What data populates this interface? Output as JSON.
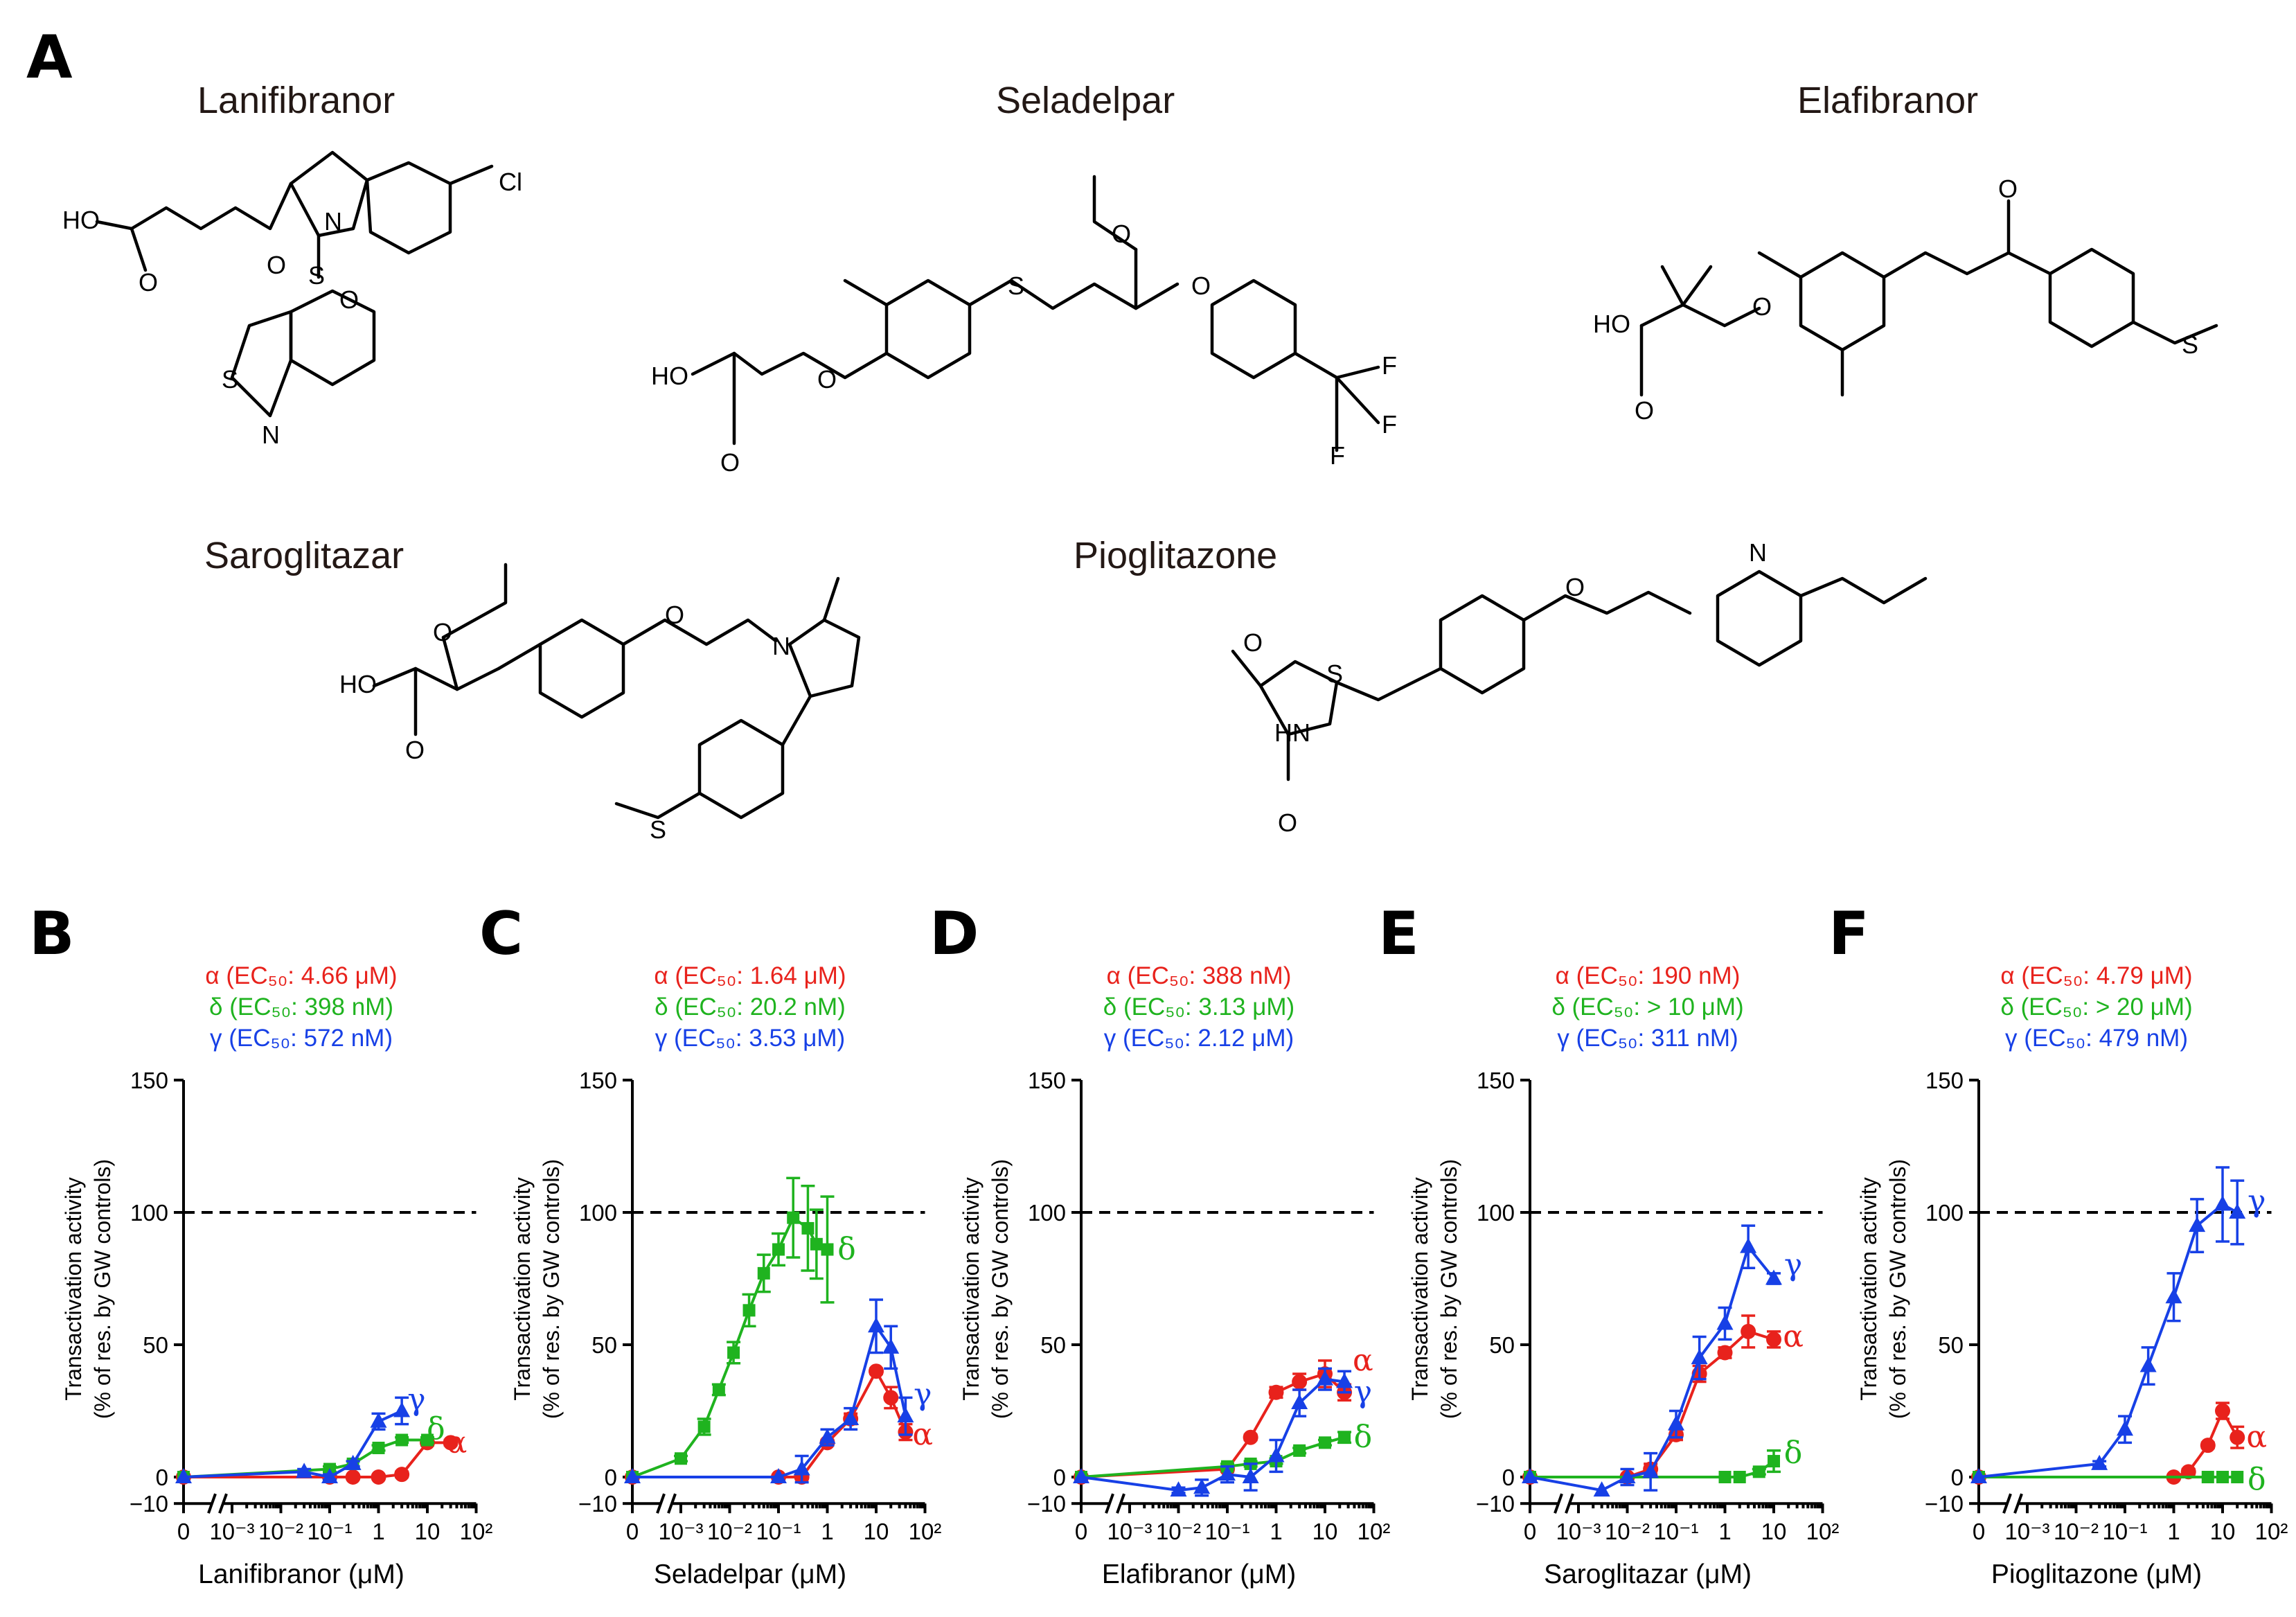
{
  "panels_label": {
    "A": "A",
    "B": "B",
    "C": "C",
    "D": "D",
    "E": "E",
    "F": "F"
  },
  "structures": {
    "lanifibranor": "Lanifibranor",
    "seladelpar": "Seladelpar",
    "elafibranor": "Elafibranor",
    "saroglitazar": "Saroglitazar",
    "pioglitazone": "Pioglitazone"
  },
  "atoms": {
    "ho": "HO",
    "o": "O",
    "n": "N",
    "s": "S",
    "cl": "Cl",
    "f": "F",
    "hn": "HN"
  },
  "colors": {
    "alpha": "#e8221c",
    "delta": "#1fb31f",
    "gamma": "#1740e6",
    "axis": "#000000"
  },
  "y_axis_title": [
    "Transactivation activity",
    "(% of res. by GW controls)"
  ],
  "y_ticks": [
    "150",
    "100",
    "50",
    "0",
    "−10"
  ],
  "x_ticks": [
    "0",
    "10⁻³",
    "10⁻²",
    "10⁻¹",
    "1",
    "10",
    "10²"
  ],
  "series_labels": {
    "alpha": "α",
    "delta": "δ",
    "gamma": "γ"
  },
  "chart_data": [
    {
      "panel": "B",
      "type": "line",
      "xscale": "log",
      "xlim": [
        0.0005,
        100
      ],
      "ylim": [
        -10,
        150
      ],
      "xlabel": "Lanifibranor (μM)",
      "ylabel": "Transactivation activity (% of res. by GW controls)",
      "reference_line": 100,
      "ec50": {
        "alpha": "α (EC₅₀: 4.66 μM)",
        "delta": "δ (EC₅₀: 398 nM)",
        "gamma": "γ (EC₅₀: 572 nM)"
      },
      "series": [
        {
          "name": "α",
          "key": "alpha",
          "x": [
            0,
            0.1,
            0.3,
            1,
            3,
            10,
            30
          ],
          "y": [
            0,
            0,
            0,
            0,
            1,
            13,
            13
          ],
          "err": [
            0,
            0,
            0,
            0,
            1,
            1,
            1
          ],
          "label_pos": [
            40,
            13
          ]
        },
        {
          "name": "δ",
          "key": "delta",
          "x": [
            0,
            0.1,
            0.3,
            1,
            3,
            10
          ],
          "y": [
            0,
            3,
            5,
            11,
            14,
            14
          ],
          "err": [
            0,
            1,
            1,
            1,
            1,
            1
          ],
          "label_pos": [
            15,
            18
          ]
        },
        {
          "name": "γ",
          "key": "gamma",
          "x": [
            0,
            0.03,
            0.1,
            0.3,
            1,
            3
          ],
          "y": [
            0,
            2,
            0,
            5,
            21,
            25
          ],
          "err": [
            0,
            1,
            1,
            1,
            3,
            5
          ],
          "label_pos": [
            6,
            29
          ]
        }
      ]
    },
    {
      "panel": "C",
      "type": "line",
      "xscale": "log",
      "xlim": [
        0.0005,
        100
      ],
      "ylim": [
        -10,
        150
      ],
      "xlabel": "Seladelpar (μM)",
      "ylabel": "Transactivation activity (% of res. by GW controls)",
      "reference_line": 100,
      "ec50": {
        "alpha": "α (EC₅₀: 1.64 μM)",
        "delta": "δ (EC₅₀: 20.2 nM)",
        "gamma": "γ (EC₅₀: 3.53 μM)"
      },
      "series": [
        {
          "name": "α",
          "key": "alpha",
          "x": [
            0,
            0.1,
            0.3,
            1,
            3,
            10,
            20,
            40
          ],
          "y": [
            0,
            0,
            0,
            13,
            22,
            40,
            30,
            17
          ],
          "err": [
            0,
            0,
            0,
            1,
            2,
            1,
            4,
            3
          ],
          "label_pos": [
            90,
            16
          ]
        },
        {
          "name": "δ",
          "key": "delta",
          "x": [
            0,
            0.001,
            0.003,
            0.006,
            0.012,
            0.025,
            0.05,
            0.1,
            0.2,
            0.4,
            0.6,
            1
          ],
          "y": [
            0,
            7,
            19,
            33,
            47,
            63,
            77,
            86,
            98,
            94,
            88,
            86
          ],
          "err": [
            0,
            1,
            3,
            2,
            4,
            6,
            7,
            6,
            15,
            16,
            13,
            20
          ],
          "label_pos": [
            2.5,
            86
          ]
        },
        {
          "name": "γ",
          "key": "gamma",
          "x": [
            0,
            0.1,
            0.3,
            1,
            3,
            10,
            20,
            40
          ],
          "y": [
            0,
            0,
            3,
            15,
            22,
            57,
            49,
            23
          ],
          "err": [
            0,
            0,
            5,
            3,
            4,
            10,
            8,
            7
          ],
          "label_pos": [
            90,
            31
          ]
        }
      ]
    },
    {
      "panel": "D",
      "type": "line",
      "xscale": "log",
      "xlim": [
        0.0005,
        100
      ],
      "ylim": [
        -10,
        150
      ],
      "xlabel": "Elafibranor (μM)",
      "ylabel": "Transactivation activity (% of res. by GW controls)",
      "reference_line": 100,
      "ec50": {
        "alpha": "α (EC₅₀: 388 nM)",
        "delta": "δ (EC₅₀: 3.13 μM)",
        "gamma": "γ (EC₅₀: 2.12 μM)"
      },
      "series": [
        {
          "name": "α",
          "key": "alpha",
          "x": [
            0,
            0.1,
            0.3,
            1,
            3,
            10,
            25
          ],
          "y": [
            0,
            3,
            15,
            32,
            36,
            39,
            32
          ],
          "err": [
            0,
            1,
            1,
            2,
            3,
            5,
            3
          ],
          "label_pos": [
            60,
            44
          ]
        },
        {
          "name": "δ",
          "key": "delta",
          "x": [
            0,
            0.1,
            0.3,
            1,
            3,
            10,
            25
          ],
          "y": [
            0,
            4,
            5,
            6,
            10,
            13,
            15
          ],
          "err": [
            0,
            1,
            1,
            1,
            1,
            1,
            2
          ],
          "label_pos": [
            60,
            15
          ]
        },
        {
          "name": "γ",
          "key": "gamma",
          "x": [
            0,
            0.01,
            0.03,
            0.1,
            0.3,
            1,
            3,
            10,
            25
          ],
          "y": [
            0,
            -5,
            -4,
            1,
            0,
            8,
            28,
            37,
            36
          ],
          "err": [
            0,
            1,
            3,
            3,
            5,
            6,
            5,
            4,
            4
          ],
          "label_pos": [
            60,
            32
          ]
        }
      ]
    },
    {
      "panel": "E",
      "type": "line",
      "xscale": "log",
      "xlim": [
        0.0005,
        100
      ],
      "ylim": [
        -10,
        150
      ],
      "xlabel": "Saroglitazar (μM)",
      "ylabel": "Transactivation activity (% of res. by GW controls)",
      "reference_line": 100,
      "ec50": {
        "alpha": "α (EC₅₀: 190 nM)",
        "delta": "δ (EC₅₀: > 10 μM)",
        "gamma": "γ (EC₅₀: 311 nM)"
      },
      "series": [
        {
          "name": "α",
          "key": "alpha",
          "x": [
            0,
            0.01,
            0.03,
            0.1,
            0.3,
            1,
            3,
            10
          ],
          "y": [
            0,
            0,
            3,
            16,
            39,
            47,
            55,
            52
          ],
          "err": [
            0,
            0,
            2,
            2,
            3,
            2,
            6,
            3
          ],
          "label_pos": [
            25,
            53
          ]
        },
        {
          "name": "δ",
          "key": "delta",
          "x": [
            0,
            1,
            2,
            5,
            10
          ],
          "y": [
            0,
            0,
            0,
            2,
            6
          ],
          "err": [
            0,
            0,
            0,
            1,
            4
          ],
          "label_pos": [
            25,
            9
          ]
        },
        {
          "name": "γ",
          "key": "gamma",
          "x": [
            0,
            0.003,
            0.01,
            0.03,
            0.1,
            0.3,
            1,
            3,
            10
          ],
          "y": [
            0,
            -5,
            0,
            2,
            20,
            45,
            58,
            87,
            75
          ],
          "err": [
            0,
            0,
            3,
            7,
            5,
            8,
            6,
            8,
            2
          ],
          "label_pos": [
            25,
            80
          ]
        }
      ]
    },
    {
      "panel": "F",
      "type": "line",
      "xscale": "log",
      "xlim": [
        0.0005,
        100
      ],
      "ylim": [
        -10,
        150
      ],
      "xlabel": "Pioglitazone (μM)",
      "ylabel": "Transactivation activity (% of res. by GW controls)",
      "reference_line": 100,
      "ec50": {
        "alpha": "α (EC₅₀: 4.79 μM)",
        "delta": "δ (EC₅₀: > 20 μM)",
        "gamma": "γ (EC₅₀: 479 nM)"
      },
      "series": [
        {
          "name": "α",
          "key": "alpha",
          "x": [
            0,
            1,
            2,
            5,
            10,
            20
          ],
          "y": [
            0,
            0,
            2,
            12,
            25,
            15
          ],
          "err": [
            0,
            0,
            1,
            1,
            3,
            4
          ],
          "label_pos": [
            50,
            15
          ]
        },
        {
          "name": "δ",
          "key": "delta",
          "x": [
            0,
            5,
            10,
            20
          ],
          "y": [
            0,
            0,
            0,
            0
          ],
          "err": [
            0,
            0,
            0,
            0
          ],
          "label_pos": [
            50,
            -1
          ]
        },
        {
          "name": "γ",
          "key": "gamma",
          "x": [
            0,
            0.03,
            0.1,
            0.3,
            1,
            3,
            10,
            20
          ],
          "y": [
            0,
            5,
            18,
            42,
            68,
            95,
            103,
            100
          ],
          "err": [
            0,
            1,
            5,
            7,
            9,
            10,
            14,
            12
          ],
          "label_pos": [
            50,
            104
          ]
        }
      ]
    }
  ]
}
